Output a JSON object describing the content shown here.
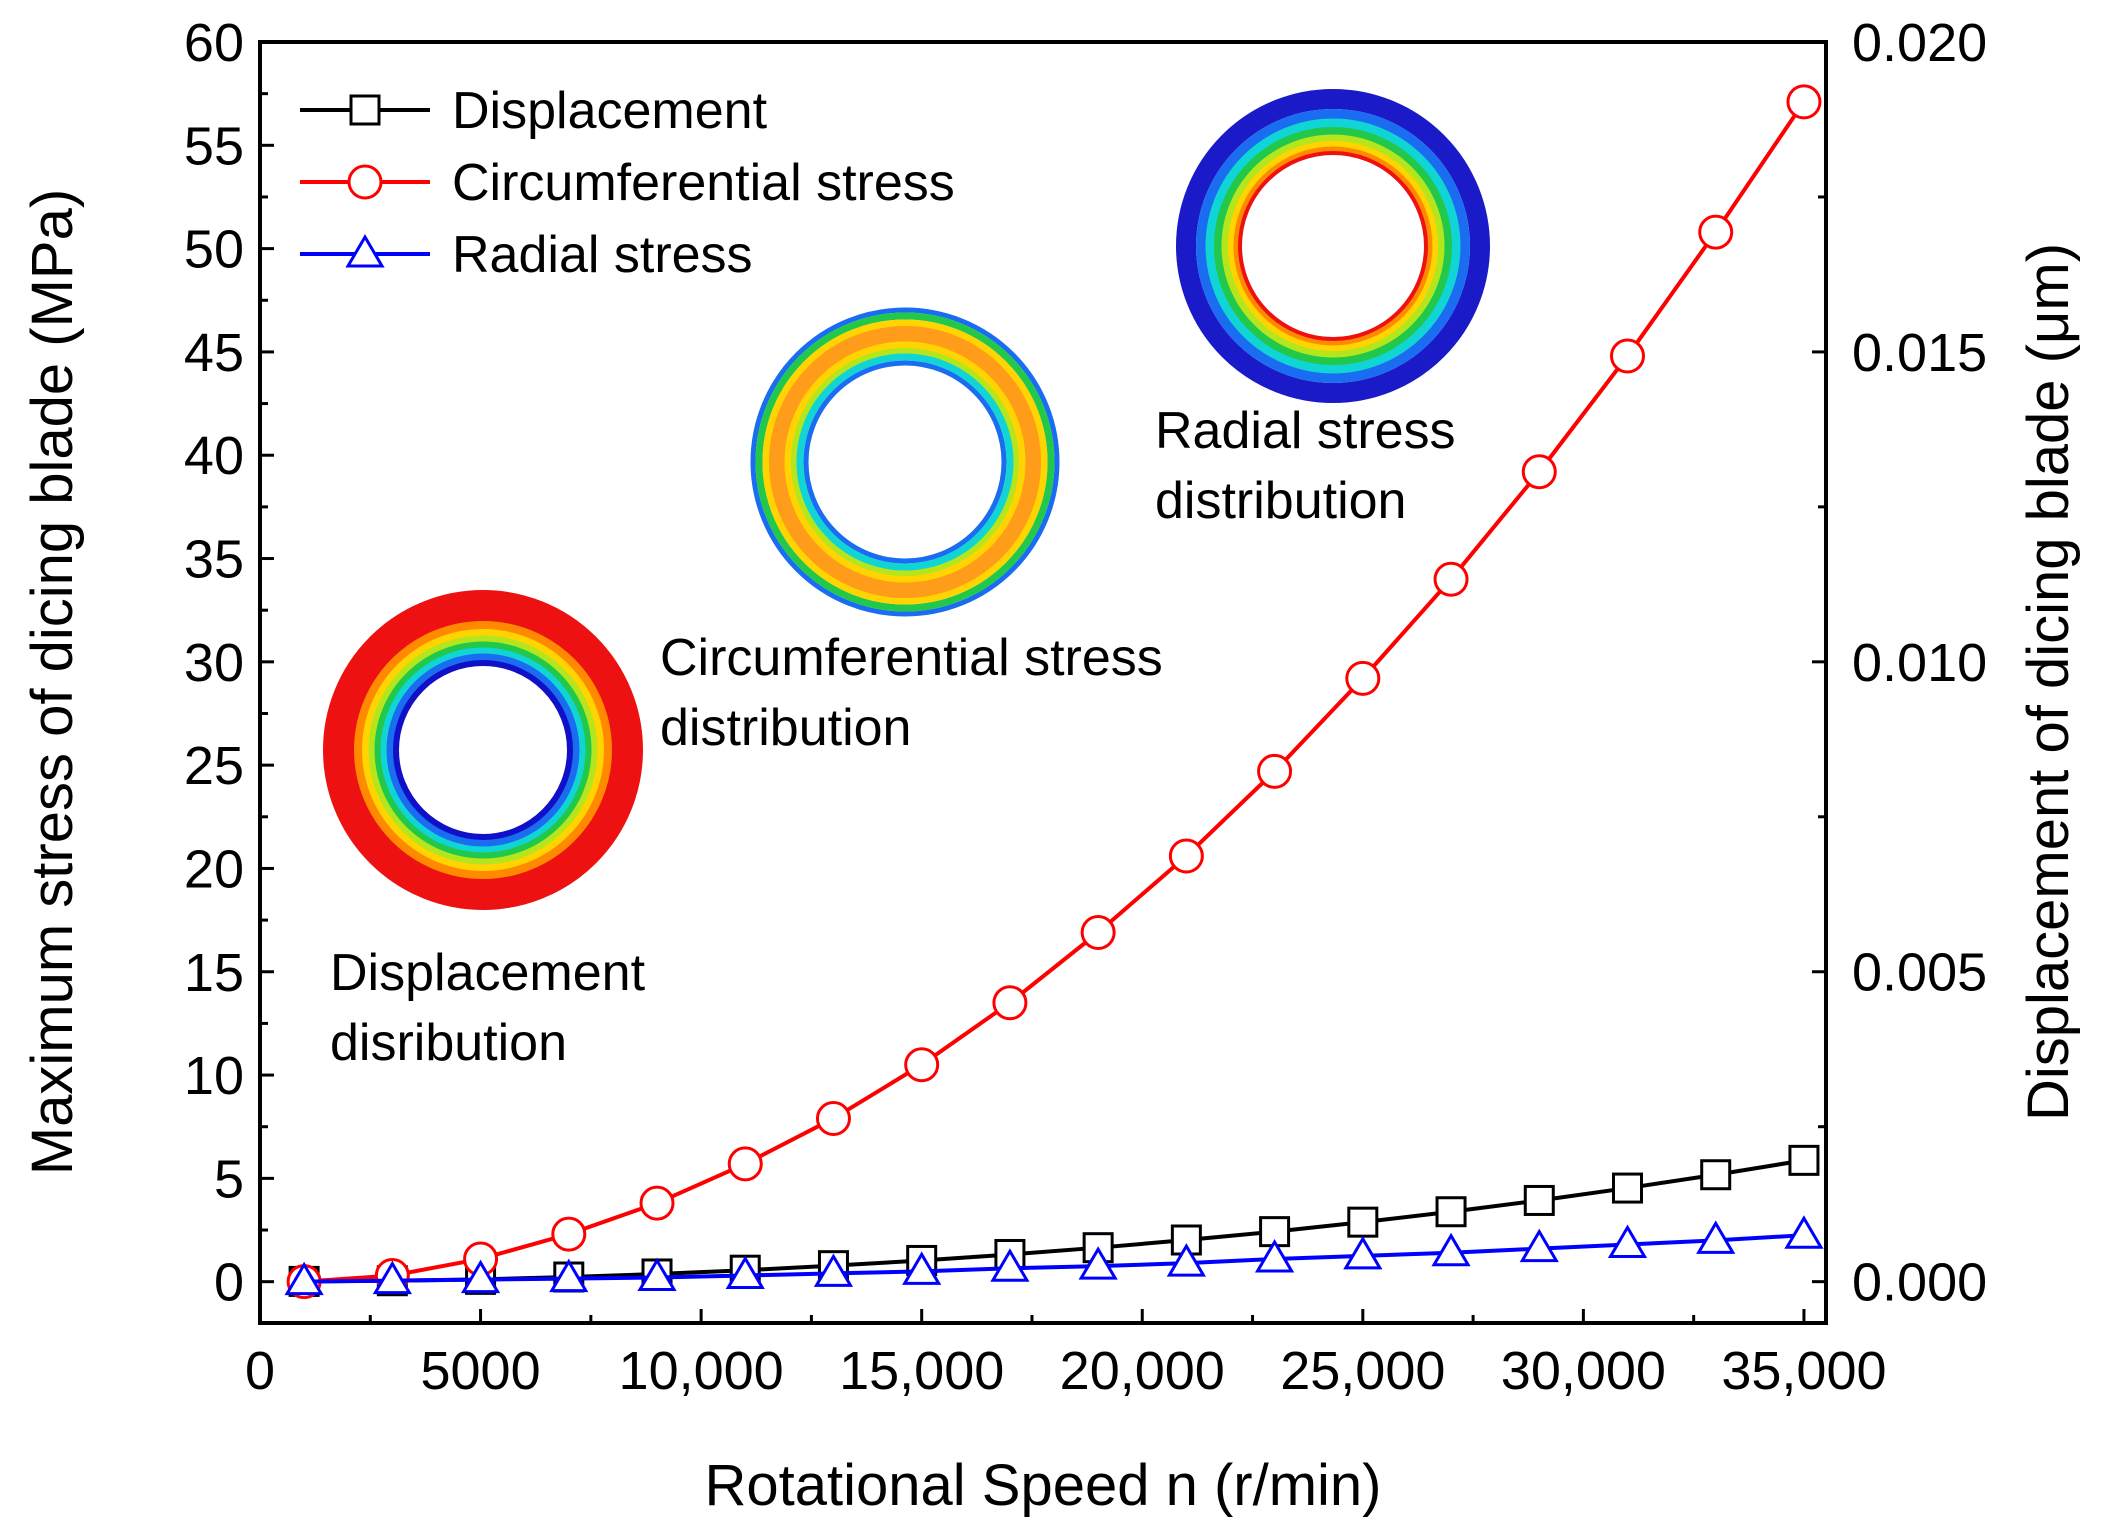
{
  "chart_data": {
    "type": "line",
    "title": "",
    "xlabel": "Rotational Speed n (r/min)",
    "ylabel": "Maximum stress of dicing blade (MPa)",
    "y2label": "Displacement of dicing blade (μm)",
    "xlim": [
      0,
      35500
    ],
    "ylim": [
      -2,
      60
    ],
    "y2lim": [
      -0.000667,
      0.02
    ],
    "x_ticks": [
      0,
      5000,
      10000,
      15000,
      20000,
      25000,
      30000,
      35000
    ],
    "x_tick_labels": [
      "0",
      "5000",
      "10,000",
      "15,000",
      "20,000",
      "25,000",
      "30,000",
      "35,000"
    ],
    "y_ticks": [
      0,
      5,
      10,
      15,
      20,
      25,
      30,
      35,
      40,
      45,
      50,
      55,
      60
    ],
    "y_tick_labels": [
      "0",
      "5",
      "10",
      "15",
      "20",
      "25",
      "30",
      "35",
      "40",
      "45",
      "50",
      "55",
      "60"
    ],
    "y2_ticks": [
      0,
      0.005,
      0.01,
      0.015,
      0.02
    ],
    "y2_tick_labels": [
      "0.000",
      "0.005",
      "0.010",
      "0.015",
      "0.020"
    ],
    "x": [
      1000,
      3000,
      5000,
      7000,
      9000,
      11000,
      13000,
      15000,
      17000,
      19000,
      21000,
      23000,
      25000,
      27000,
      29000,
      31000,
      33000,
      35000
    ],
    "series": [
      {
        "name": "Displacement",
        "axis": "right",
        "color": "#000000",
        "marker": "square",
        "values": [
          4e-06,
          1.5e-05,
          3.7e-05,
          7.5e-05,
          0.000124,
          0.000185,
          0.000258,
          0.000342,
          0.000438,
          0.000548,
          0.000672,
          0.000807,
          0.00096,
          0.001128,
          0.00131,
          0.00151,
          0.001725,
          0.001957
        ]
      },
      {
        "name": "Circumferential stress",
        "axis": "left",
        "color": "#ff0000",
        "marker": "circle",
        "values": [
          0.0,
          0.3,
          1.1,
          2.3,
          3.8,
          5.7,
          7.9,
          10.5,
          13.5,
          16.9,
          20.6,
          24.7,
          29.2,
          34.0,
          39.2,
          44.8,
          50.8,
          57.1
        ]
      },
      {
        "name": "Radial stress",
        "axis": "left",
        "color": "#0000ff",
        "marker": "triangle",
        "values": [
          0.0,
          0.05,
          0.1,
          0.15,
          0.2,
          0.3,
          0.4,
          0.5,
          0.65,
          0.75,
          0.9,
          1.1,
          1.25,
          1.4,
          1.6,
          1.8,
          2.0,
          2.25
        ]
      }
    ],
    "legend_position": "top-left"
  },
  "insets": [
    {
      "name": "displacement",
      "label_lines": [
        "Displacement",
        "disribution"
      ]
    },
    {
      "name": "circumferential",
      "label_lines": [
        "Circumferential stress",
        "distribution"
      ]
    },
    {
      "name": "radial",
      "label_lines": [
        "Radial stress",
        "distribution"
      ]
    }
  ]
}
